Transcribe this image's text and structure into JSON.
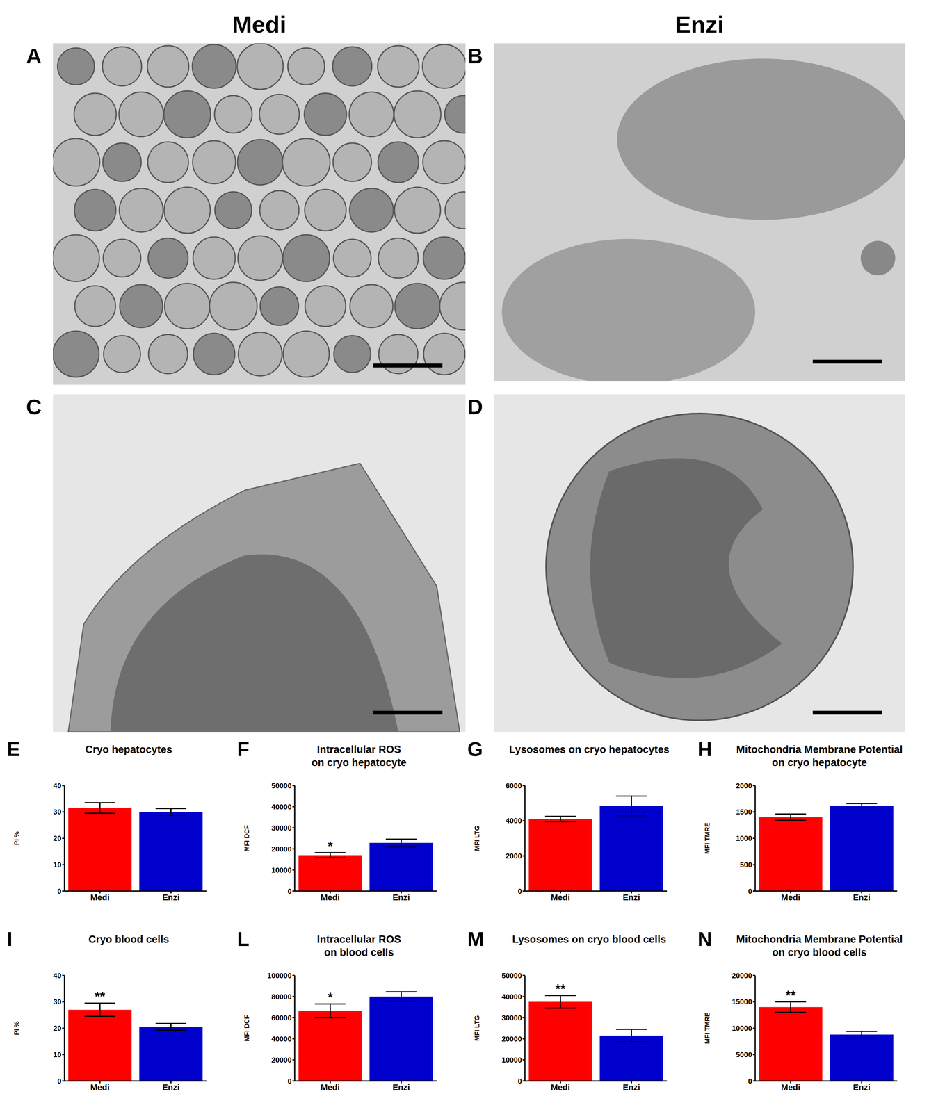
{
  "headers": [
    "Medi",
    "Enzi"
  ],
  "images": [
    {
      "panel": "A"
    },
    {
      "panel": "B"
    },
    {
      "panel": "C"
    },
    {
      "panel": "D"
    }
  ],
  "chart_data": [
    {
      "type": "bar",
      "panel": "E",
      "title": "Cryo hepatocytes",
      "y_label": "PI %",
      "categories": [
        "Medi",
        "Enzi"
      ],
      "values": [
        31.5,
        30
      ],
      "errors": [
        2,
        1.3
      ],
      "colors": [
        "#ff0000",
        "#0000cc"
      ],
      "ylim": [
        0,
        40
      ],
      "yticks": [
        0,
        10,
        20,
        30,
        40
      ],
      "annotations": []
    },
    {
      "type": "bar",
      "panel": "F",
      "title": "Intracellular ROS\non cryo hepatocyte",
      "y_label": "MFI DCF",
      "categories": [
        "Medi",
        "Enzi"
      ],
      "values": [
        17000,
        22800
      ],
      "errors": [
        1200,
        1800
      ],
      "colors": [
        "#ff0000",
        "#0000cc"
      ],
      "ylim": [
        0,
        50000
      ],
      "yticks": [
        0,
        10000,
        20000,
        30000,
        40000,
        50000
      ],
      "annotations": [
        {
          "category": "Medi",
          "text": "*"
        }
      ]
    },
    {
      "type": "bar",
      "panel": "G",
      "title": "Lysosomes on cryo hepatocytes",
      "y_label": "MFI LTG",
      "categories": [
        "Medi",
        "Enzi"
      ],
      "values": [
        4100,
        4850
      ],
      "errors": [
        150,
        550
      ],
      "colors": [
        "#ff0000",
        "#0000cc"
      ],
      "ylim": [
        0,
        6000
      ],
      "yticks": [
        0,
        2000,
        4000,
        6000
      ],
      "annotations": []
    },
    {
      "type": "bar",
      "panel": "H",
      "title": "Mitochondria Membrane Potential\non cryo hepatocyte",
      "y_label": "MFI TMRE",
      "categories": [
        "Medi",
        "Enzi"
      ],
      "values": [
        1400,
        1620
      ],
      "errors": [
        60,
        40
      ],
      "colors": [
        "#ff0000",
        "#0000cc"
      ],
      "ylim": [
        0,
        2000
      ],
      "yticks": [
        0,
        500,
        1000,
        1500,
        2000
      ],
      "annotations": []
    },
    {
      "type": "bar",
      "panel": "I",
      "title": "Cryo blood cells",
      "y_label": "PI %",
      "categories": [
        "Medi",
        "Enzi"
      ],
      "values": [
        27,
        20.5
      ],
      "errors": [
        2.5,
        1.3
      ],
      "colors": [
        "#ff0000",
        "#0000cc"
      ],
      "ylim": [
        0,
        40
      ],
      "yticks": [
        0,
        10,
        20,
        30,
        40
      ],
      "annotations": [
        {
          "category": "Medi",
          "text": "**"
        }
      ]
    },
    {
      "type": "bar",
      "panel": "L",
      "title": "Intracellular ROS\non blood cells",
      "y_label": "MFI DCF",
      "categories": [
        "Medi",
        "Enzi"
      ],
      "values": [
        66500,
        80000
      ],
      "errors": [
        6500,
        4500
      ],
      "colors": [
        "#ff0000",
        "#0000cc"
      ],
      "ylim": [
        0,
        100000
      ],
      "yticks": [
        0,
        20000,
        40000,
        60000,
        80000,
        100000
      ],
      "annotations": [
        {
          "category": "Medi",
          "text": "*"
        }
      ]
    },
    {
      "type": "bar",
      "panel": "M",
      "title": "Lysosomes on cryo blood cells",
      "y_label": "MFI LTG",
      "categories": [
        "Medi",
        "Enzi"
      ],
      "values": [
        37500,
        21500
      ],
      "errors": [
        3000,
        3000
      ],
      "colors": [
        "#ff0000",
        "#0000cc"
      ],
      "ylim": [
        0,
        50000
      ],
      "yticks": [
        0,
        10000,
        20000,
        30000,
        40000,
        50000
      ],
      "annotations": [
        {
          "category": "Medi",
          "text": "**"
        }
      ]
    },
    {
      "type": "bar",
      "panel": "N",
      "title": "Mitochondria Membrane Potential\non cryo blood cells",
      "y_label": "MFI TMRE",
      "categories": [
        "Medi",
        "Enzi"
      ],
      "values": [
        14000,
        8800
      ],
      "errors": [
        1000,
        600
      ],
      "colors": [
        "#ff0000",
        "#0000cc"
      ],
      "ylim": [
        0,
        20000
      ],
      "yticks": [
        0,
        5000,
        10000,
        15000,
        20000
      ],
      "annotations": [
        {
          "category": "Medi",
          "text": "**"
        }
      ]
    }
  ]
}
